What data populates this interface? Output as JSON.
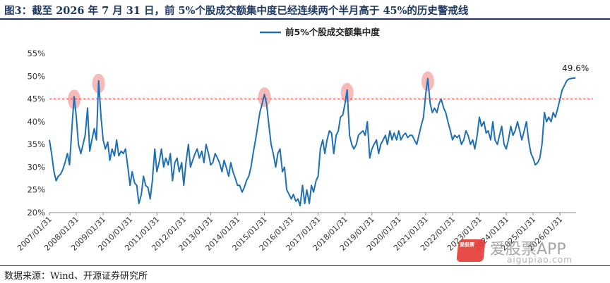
{
  "figure": {
    "title": "图3：截至 2026 年 7 月 31 日，前 5%个股成交额集中度已经连续两个半月高于 45%的历史警戒线",
    "source": "数据来源：Wind、开源证券研究所"
  },
  "watermark": {
    "logo_text": "爱股票",
    "name": "爱股票APP",
    "url": "aigupiao.com"
  },
  "chart_data": {
    "type": "line",
    "title": "",
    "xlabel": "",
    "ylabel": "",
    "ylim": [
      20,
      55
    ],
    "yticks": [
      "20%",
      "25%",
      "30%",
      "35%",
      "40%",
      "45%",
      "50%",
      "55%"
    ],
    "ytick_values": [
      20,
      25,
      30,
      35,
      40,
      45,
      50,
      55
    ],
    "xticks": [
      "2007/01/31",
      "2008/01/31",
      "2009/01/31",
      "2010/01/31",
      "2011/01/31",
      "2012/01/31",
      "2013/01/31",
      "2014/01/31",
      "2015/01/31",
      "2016/01/31",
      "2017/01/31",
      "2018/01/31",
      "2019/01/31",
      "2020/01/31",
      "2021/01/31",
      "2022/01/31",
      "2023/01/31",
      "2024/01/31",
      "2025/01/31",
      "2026/01/31"
    ],
    "xtick_values": [
      2007,
      2008,
      2009,
      2010,
      2011,
      2012,
      2013,
      2014,
      2015,
      2016,
      2017,
      2018,
      2019,
      2020,
      2021,
      2022,
      2023,
      2024,
      2025,
      2026
    ],
    "xlim": [
      2007,
      2026.6
    ],
    "grid": false,
    "legend": {
      "position": "top-center",
      "entries": [
        "前5%个股成交额集中度"
      ]
    },
    "threshold": {
      "value": 45,
      "style": "dashed",
      "color": "#e53935"
    },
    "highlight_peaks": [
      2007.92,
      2008.83,
      2015.0,
      2018.08,
      2021.08
    ],
    "end_label": "49.6%",
    "series": [
      {
        "name": "前5%个股成交额集中度",
        "color": "#1f6fb5",
        "points": [
          [
            2007.0,
            36
          ],
          [
            2007.08,
            33
          ],
          [
            2007.17,
            29
          ],
          [
            2007.25,
            27
          ],
          [
            2007.33,
            28
          ],
          [
            2007.42,
            28.5
          ],
          [
            2007.5,
            29.5
          ],
          [
            2007.58,
            31
          ],
          [
            2007.67,
            33
          ],
          [
            2007.75,
            30.5
          ],
          [
            2007.83,
            38
          ],
          [
            2007.92,
            45.5
          ],
          [
            2008.0,
            41
          ],
          [
            2008.08,
            35
          ],
          [
            2008.17,
            33
          ],
          [
            2008.25,
            35
          ],
          [
            2008.33,
            37
          ],
          [
            2008.42,
            43
          ],
          [
            2008.5,
            33.5
          ],
          [
            2008.58,
            36
          ],
          [
            2008.67,
            38.5
          ],
          [
            2008.75,
            36
          ],
          [
            2008.83,
            49
          ],
          [
            2008.92,
            41
          ],
          [
            2009.0,
            36
          ],
          [
            2009.08,
            34
          ],
          [
            2009.17,
            35.5
          ],
          [
            2009.25,
            31.5
          ],
          [
            2009.33,
            34
          ],
          [
            2009.42,
            32.5
          ],
          [
            2009.5,
            36
          ],
          [
            2009.58,
            32.5
          ],
          [
            2009.67,
            33.5
          ],
          [
            2009.75,
            33
          ],
          [
            2009.83,
            34
          ],
          [
            2009.92,
            30
          ],
          [
            2010.0,
            26
          ],
          [
            2010.08,
            29
          ],
          [
            2010.17,
            26.5
          ],
          [
            2010.25,
            26
          ],
          [
            2010.33,
            22
          ],
          [
            2010.42,
            24
          ],
          [
            2010.5,
            28
          ],
          [
            2010.58,
            26
          ],
          [
            2010.67,
            25.5
          ],
          [
            2010.75,
            23
          ],
          [
            2010.83,
            27
          ],
          [
            2010.92,
            34
          ],
          [
            2011.0,
            29
          ],
          [
            2011.08,
            31
          ],
          [
            2011.17,
            34
          ],
          [
            2011.25,
            30
          ],
          [
            2011.33,
            32
          ],
          [
            2011.42,
            30.5
          ],
          [
            2011.5,
            33
          ],
          [
            2011.58,
            27
          ],
          [
            2011.67,
            31
          ],
          [
            2011.75,
            32
          ],
          [
            2011.83,
            29
          ],
          [
            2011.92,
            31
          ],
          [
            2012.0,
            26
          ],
          [
            2012.08,
            31
          ],
          [
            2012.17,
            35
          ],
          [
            2012.25,
            30
          ],
          [
            2012.33,
            31.5
          ],
          [
            2012.42,
            33
          ],
          [
            2012.5,
            34
          ],
          [
            2012.58,
            32
          ],
          [
            2012.67,
            33.5
          ],
          [
            2012.75,
            31
          ],
          [
            2012.83,
            35
          ],
          [
            2012.92,
            33
          ],
          [
            2013.0,
            30.5
          ],
          [
            2013.08,
            31
          ],
          [
            2013.17,
            33
          ],
          [
            2013.25,
            32
          ],
          [
            2013.33,
            31
          ],
          [
            2013.42,
            29
          ],
          [
            2013.5,
            31.5
          ],
          [
            2013.58,
            30
          ],
          [
            2013.67,
            28
          ],
          [
            2013.75,
            31
          ],
          [
            2013.83,
            29
          ],
          [
            2013.92,
            27.5
          ],
          [
            2014.0,
            26
          ],
          [
            2014.08,
            26
          ],
          [
            2014.17,
            24.5
          ],
          [
            2014.25,
            25.5
          ],
          [
            2014.33,
            27
          ],
          [
            2014.42,
            28
          ],
          [
            2014.5,
            30
          ],
          [
            2014.58,
            33
          ],
          [
            2014.67,
            36
          ],
          [
            2014.75,
            39
          ],
          [
            2014.83,
            42
          ],
          [
            2014.92,
            44
          ],
          [
            2015.0,
            46
          ],
          [
            2015.08,
            44
          ],
          [
            2015.17,
            39
          ],
          [
            2015.25,
            35
          ],
          [
            2015.33,
            33
          ],
          [
            2015.42,
            30
          ],
          [
            2015.5,
            33
          ],
          [
            2015.58,
            34
          ],
          [
            2015.67,
            29
          ],
          [
            2015.75,
            30
          ],
          [
            2015.83,
            25
          ],
          [
            2015.92,
            24
          ],
          [
            2016.0,
            23
          ],
          [
            2016.08,
            24
          ],
          [
            2016.17,
            22.5
          ],
          [
            2016.25,
            23
          ],
          [
            2016.33,
            21.5
          ],
          [
            2016.42,
            26
          ],
          [
            2016.5,
            22
          ],
          [
            2016.58,
            25
          ],
          [
            2016.67,
            22
          ],
          [
            2016.75,
            26
          ],
          [
            2016.83,
            24.5
          ],
          [
            2016.92,
            27
          ],
          [
            2017.0,
            28
          ],
          [
            2017.08,
            34
          ],
          [
            2017.17,
            36
          ],
          [
            2017.25,
            33
          ],
          [
            2017.33,
            36
          ],
          [
            2017.42,
            38
          ],
          [
            2017.5,
            37.5
          ],
          [
            2017.58,
            33
          ],
          [
            2017.67,
            37
          ],
          [
            2017.75,
            38
          ],
          [
            2017.83,
            41
          ],
          [
            2017.92,
            41.5
          ],
          [
            2018.0,
            44
          ],
          [
            2018.08,
            47
          ],
          [
            2018.17,
            37
          ],
          [
            2018.25,
            35
          ],
          [
            2018.33,
            34
          ],
          [
            2018.42,
            35
          ],
          [
            2018.5,
            37
          ],
          [
            2018.58,
            37.5
          ],
          [
            2018.67,
            38
          ],
          [
            2018.75,
            37
          ],
          [
            2018.83,
            40
          ],
          [
            2018.92,
            32
          ],
          [
            2019.0,
            34
          ],
          [
            2019.08,
            35
          ],
          [
            2019.17,
            36
          ],
          [
            2019.25,
            33
          ],
          [
            2019.33,
            35
          ],
          [
            2019.42,
            36
          ],
          [
            2019.5,
            37
          ],
          [
            2019.58,
            35
          ],
          [
            2019.67,
            38
          ],
          [
            2019.75,
            36
          ],
          [
            2019.83,
            37.5
          ],
          [
            2019.92,
            36
          ],
          [
            2020.0,
            38
          ],
          [
            2020.08,
            36
          ],
          [
            2020.17,
            37
          ],
          [
            2020.25,
            37.5
          ],
          [
            2020.33,
            36.5
          ],
          [
            2020.42,
            37
          ],
          [
            2020.5,
            37
          ],
          [
            2020.58,
            36
          ],
          [
            2020.67,
            35
          ],
          [
            2020.75,
            37
          ],
          [
            2020.83,
            39
          ],
          [
            2020.92,
            41
          ],
          [
            2021.0,
            46
          ],
          [
            2021.08,
            49.5
          ],
          [
            2021.17,
            44
          ],
          [
            2021.25,
            42
          ],
          [
            2021.33,
            43
          ],
          [
            2021.42,
            42
          ],
          [
            2021.5,
            44
          ],
          [
            2021.58,
            45
          ],
          [
            2021.67,
            43
          ],
          [
            2021.75,
            42
          ],
          [
            2021.83,
            40
          ],
          [
            2021.92,
            38
          ],
          [
            2022.0,
            36
          ],
          [
            2022.08,
            37
          ],
          [
            2022.17,
            36.5
          ],
          [
            2022.25,
            37
          ],
          [
            2022.33,
            35
          ],
          [
            2022.42,
            36
          ],
          [
            2022.5,
            38
          ],
          [
            2022.58,
            37
          ],
          [
            2022.67,
            35
          ],
          [
            2022.75,
            36
          ],
          [
            2022.83,
            34
          ],
          [
            2022.92,
            37
          ],
          [
            2023.0,
            41
          ],
          [
            2023.08,
            39
          ],
          [
            2023.17,
            40
          ],
          [
            2023.25,
            37.5
          ],
          [
            2023.33,
            38
          ],
          [
            2023.42,
            36
          ],
          [
            2023.5,
            40
          ],
          [
            2023.58,
            36
          ],
          [
            2023.67,
            35
          ],
          [
            2023.75,
            37
          ],
          [
            2023.83,
            39
          ],
          [
            2023.92,
            35
          ],
          [
            2024.0,
            34
          ],
          [
            2024.08,
            36
          ],
          [
            2024.17,
            39
          ],
          [
            2024.25,
            37
          ],
          [
            2024.33,
            38
          ],
          [
            2024.42,
            40
          ],
          [
            2024.5,
            38
          ],
          [
            2024.58,
            36
          ],
          [
            2024.67,
            38
          ],
          [
            2024.75,
            40
          ],
          [
            2024.83,
            36
          ],
          [
            2024.92,
            33
          ],
          [
            2025.0,
            32
          ],
          [
            2025.08,
            30.5
          ],
          [
            2025.17,
            31
          ],
          [
            2025.25,
            32
          ],
          [
            2025.33,
            35
          ],
          [
            2025.42,
            42
          ],
          [
            2025.5,
            40
          ],
          [
            2025.58,
            41
          ],
          [
            2025.67,
            40
          ],
          [
            2025.75,
            42
          ],
          [
            2025.83,
            41
          ],
          [
            2025.92,
            43
          ],
          [
            2026.0,
            45
          ],
          [
            2026.08,
            47
          ],
          [
            2026.17,
            48
          ],
          [
            2026.25,
            49
          ],
          [
            2026.33,
            49.4
          ],
          [
            2026.42,
            49.5
          ],
          [
            2026.5,
            49.6
          ],
          [
            2026.58,
            49.6
          ]
        ]
      }
    ]
  }
}
